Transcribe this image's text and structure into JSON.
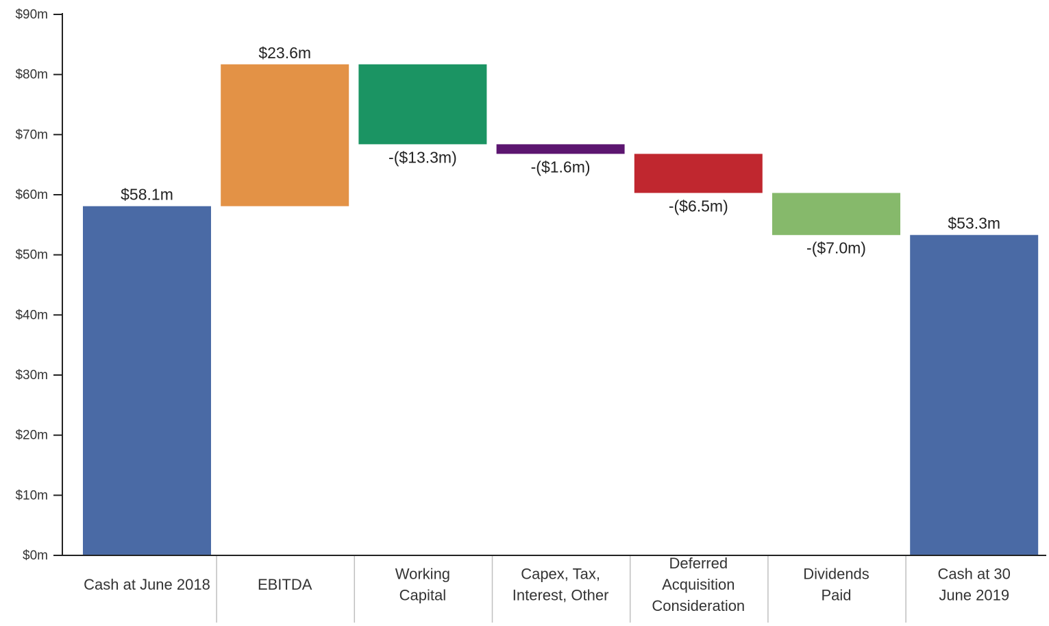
{
  "chart_data": {
    "type": "bar",
    "subtype": "waterfall",
    "title": "",
    "xlabel": "",
    "ylabel": "",
    "ylim": [
      0,
      90
    ],
    "y_ticks": [
      0,
      10,
      20,
      30,
      40,
      50,
      60,
      70,
      80,
      90
    ],
    "y_tick_labels": [
      "$0m",
      "$10m",
      "$20m",
      "$30m",
      "$40m",
      "$50m",
      "$60m",
      "$70m",
      "$80m",
      "$90m"
    ],
    "grid": false,
    "legend": "none",
    "categories": [
      [
        "Cash at June 2018"
      ],
      [
        "EBITDA"
      ],
      [
        "Working",
        "Capital"
      ],
      [
        "Capex, Tax,",
        "Interest, Other"
      ],
      [
        "Deferred",
        "Acquisition",
        "Consideration"
      ],
      [
        "Dividends",
        "Paid"
      ],
      [
        "Cash at 30",
        "June 2019"
      ]
    ],
    "bars": [
      {
        "kind": "total",
        "start": 0,
        "end": 58.1,
        "label": "$58.1m",
        "color": "#4a6aa5"
      },
      {
        "kind": "increase",
        "start": 58.1,
        "end": 81.7,
        "label": "$23.6m",
        "color": "#e39246"
      },
      {
        "kind": "decrease",
        "start": 81.7,
        "end": 68.4,
        "label": "-($13.3m)",
        "color": "#1b9463"
      },
      {
        "kind": "decrease",
        "start": 68.4,
        "end": 66.8,
        "label": "-($1.6m)",
        "color": "#5c1670"
      },
      {
        "kind": "decrease",
        "start": 66.8,
        "end": 60.3,
        "label": "-($6.5m)",
        "color": "#c0272f"
      },
      {
        "kind": "decrease",
        "start": 60.3,
        "end": 53.3,
        "label": "-($7.0m)",
        "color": "#86b96b"
      },
      {
        "kind": "total",
        "start": 0,
        "end": 53.3,
        "label": "$53.3m",
        "color": "#4a6aa5"
      }
    ]
  }
}
